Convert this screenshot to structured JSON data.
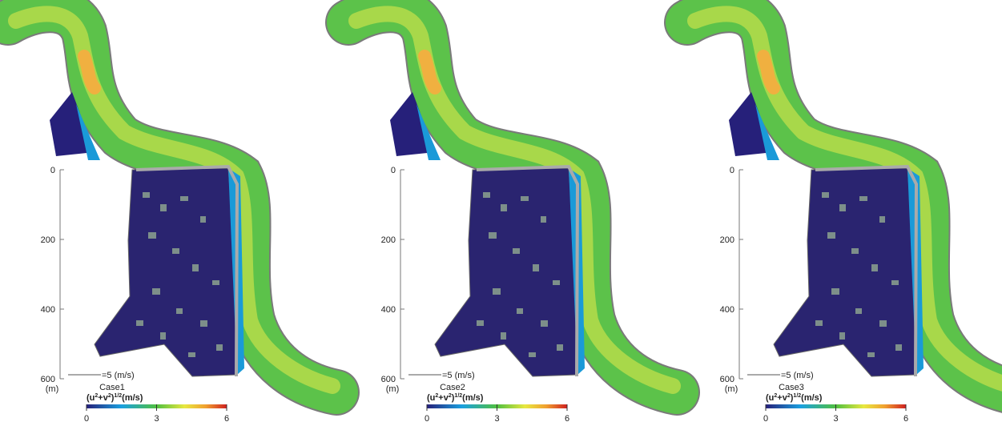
{
  "panels": [
    {
      "case": "Case1",
      "ylim": [
        0,
        600
      ],
      "yticks": [
        0,
        200,
        400,
        600
      ],
      "y_unit": "(m)",
      "vector_label": "=5 (m/s)",
      "colorbar_label": [
        "(u",
        "2",
        "+v",
        "2",
        ")",
        "1/2",
        "(m/s)"
      ],
      "colorbar_lim": [
        0,
        6
      ],
      "colorbar_ticks": [
        0,
        3,
        6
      ]
    },
    {
      "case": "Case2",
      "ylim": [
        0,
        600
      ],
      "yticks": [
        0,
        200,
        400,
        600
      ],
      "y_unit": "(m)",
      "vector_label": "=5 (m/s)",
      "colorbar_label": [
        "(u",
        "2",
        "+v",
        "2",
        ")",
        "1/2",
        "(m/s)"
      ],
      "colorbar_lim": [
        0,
        6
      ],
      "colorbar_ticks": [
        0,
        3,
        6
      ]
    },
    {
      "case": "Case3",
      "ylim": [
        0,
        600
      ],
      "yticks": [
        0,
        200,
        400,
        600
      ],
      "y_unit": "(m)",
      "vector_label": "=5 (m/s)",
      "colorbar_label": [
        "(u",
        "2",
        "+v",
        "2",
        ")",
        "1/2",
        "(m/s)"
      ],
      "colorbar_lim": [
        0,
        6
      ],
      "colorbar_ticks": [
        0,
        3,
        6
      ]
    }
  ]
}
